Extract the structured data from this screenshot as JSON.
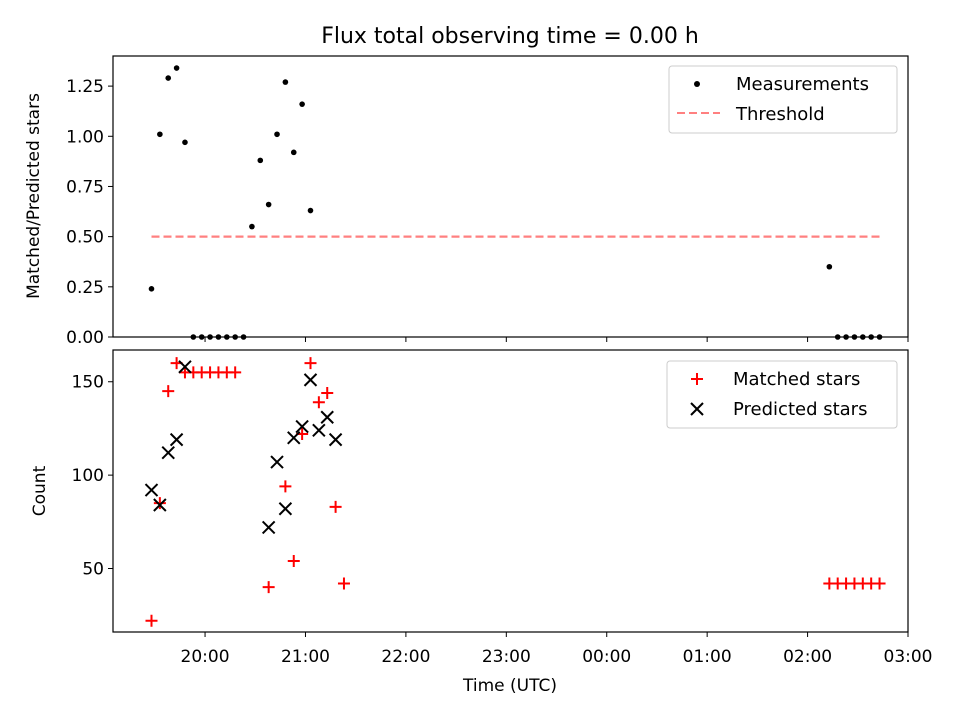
{
  "title": "Flux total observing time = 0.00 h",
  "colors": {
    "matched": "#ff0000",
    "predicted": "#000000",
    "threshold": "#ff8080",
    "measurement": "#000000"
  },
  "chart_data": [
    {
      "type": "scatter",
      "panel": "top",
      "title": "Flux total observing time = 0.00 h",
      "xlabel": "",
      "ylabel": "Matched/Predicted stars",
      "ylim": [
        0,
        1.4
      ],
      "yticks": [
        "0.00",
        "0.25",
        "0.50",
        "0.75",
        "1.00",
        "1.25"
      ],
      "legend": {
        "position": "top-right",
        "entries": [
          "Measurements",
          "Threshold"
        ]
      },
      "series": [
        {
          "name": "Measurements",
          "x": [
            "19:28",
            "19:33",
            "19:38",
            "19:43",
            "19:48",
            "19:53",
            "19:58",
            "20:03",
            "20:08",
            "20:13",
            "20:18",
            "20:23",
            "20:28",
            "20:33",
            "20:38",
            "20:43",
            "20:48",
            "20:53",
            "20:58",
            "21:03",
            "02:13",
            "02:18",
            "02:23",
            "02:28",
            "02:33",
            "02:38",
            "02:43"
          ],
          "y": [
            0.24,
            1.01,
            1.29,
            1.34,
            0.97,
            0.0,
            0.0,
            0.0,
            0.0,
            0.0,
            0.0,
            0.0,
            0.55,
            0.88,
            0.66,
            1.01,
            1.27,
            0.92,
            1.16,
            0.63,
            0.35,
            0.0,
            0.0,
            0.0,
            0.0,
            0.0,
            0.0
          ]
        },
        {
          "name": "Threshold",
          "x": [
            "19:28",
            "02:43"
          ],
          "y": [
            0.5,
            0.5
          ]
        }
      ]
    },
    {
      "type": "scatter",
      "panel": "bottom",
      "xlabel": "Time (UTC)",
      "ylabel": "Count",
      "ylim": [
        16,
        167
      ],
      "xlim": [
        "19:05",
        "03:00"
      ],
      "xticks": [
        "20:00",
        "21:00",
        "22:00",
        "23:00",
        "00:00",
        "01:00",
        "02:00",
        "03:00"
      ],
      "yticks": [
        "50",
        "100",
        "150"
      ],
      "legend": {
        "position": "top-right",
        "entries": [
          "Matched stars",
          "Predicted stars"
        ]
      },
      "series": [
        {
          "name": "Matched stars",
          "x": [
            "19:28",
            "19:33",
            "19:38",
            "19:43",
            "19:48",
            "19:53",
            "19:58",
            "20:03",
            "20:08",
            "20:13",
            "20:18",
            "20:38",
            "20:48",
            "20:53",
            "20:58",
            "21:03",
            "21:08",
            "21:13",
            "21:18",
            "21:23",
            "02:13",
            "02:18",
            "02:23",
            "02:28",
            "02:33",
            "02:38",
            "02:43"
          ],
          "y": [
            22,
            85,
            145,
            160,
            155,
            155,
            155,
            155,
            155,
            155,
            155,
            40,
            94,
            54,
            122,
            160,
            139,
            144,
            83,
            42,
            42,
            42,
            42,
            42,
            42,
            42,
            42
          ]
        },
        {
          "name": "Predicted stars",
          "x": [
            "19:28",
            "19:33",
            "19:38",
            "19:43",
            "19:48",
            "20:38",
            "20:43",
            "20:48",
            "20:53",
            "20:58",
            "21:03",
            "21:08",
            "21:13",
            "21:18"
          ],
          "y": [
            92,
            84,
            112,
            119,
            158,
            72,
            107,
            82,
            120,
            126,
            151,
            124,
            131,
            119
          ]
        }
      ]
    }
  ]
}
